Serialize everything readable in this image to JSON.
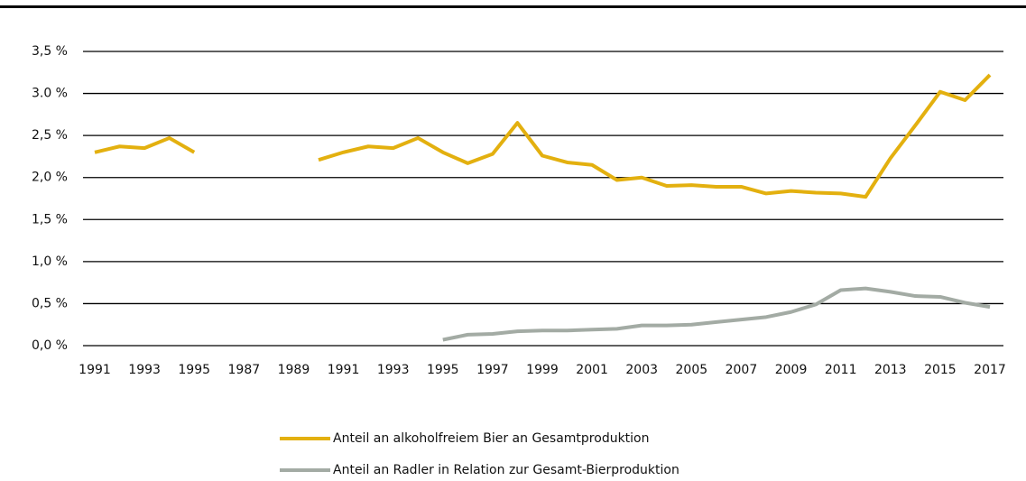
{
  "chart_data": {
    "type": "line",
    "categories": [
      "1991",
      null,
      "1993",
      null,
      "1995",
      null,
      "1987",
      null,
      "1989",
      null,
      "1991",
      null,
      "1993",
      null,
      "1995",
      null,
      "1997",
      null,
      "1999",
      null,
      "2001",
      null,
      "2003",
      null,
      "2005",
      null,
      "2007",
      null,
      "2009",
      null,
      "2011",
      null,
      "2013",
      null,
      "2015",
      null,
      "2017"
    ],
    "series": [
      {
        "name": "Anteil an alkoholfreiem Bier an Gesamtproduktion",
        "color": "#e3b00f",
        "values": [
          2.3,
          2.37,
          2.35,
          2.47,
          2.3,
          null,
          null,
          null,
          null,
          2.21,
          2.3,
          2.37,
          2.35,
          2.47,
          2.3,
          2.17,
          2.28,
          2.65,
          2.26,
          2.18,
          2.15,
          1.97,
          2.0,
          1.9,
          1.91,
          1.89,
          1.89,
          1.81,
          1.84,
          1.82,
          1.81,
          1.77,
          2.23,
          2.62,
          3.02,
          2.92,
          3.22
        ]
      },
      {
        "name": "Anteil an Radler in Relation zur Gesamt-Bierproduktion",
        "color": "#a3aba4",
        "values": [
          null,
          null,
          null,
          null,
          null,
          null,
          null,
          null,
          null,
          null,
          null,
          null,
          null,
          null,
          0.07,
          0.13,
          0.14,
          0.17,
          0.18,
          0.18,
          0.19,
          0.2,
          0.24,
          0.24,
          0.25,
          0.28,
          0.31,
          0.34,
          0.4,
          0.49,
          0.66,
          0.68,
          0.64,
          0.59,
          0.58,
          0.51,
          0.46
        ]
      }
    ],
    "ylim": [
      0,
      3.5
    ],
    "yticks": [
      {
        "value": 0,
        "label": "0,0 %"
      },
      {
        "value": 0.5,
        "label": "0,5 %"
      },
      {
        "value": 1,
        "label": "1,0 %"
      },
      {
        "value": 1.5,
        "label": "1,5 %"
      },
      {
        "value": 2,
        "label": "2,0 %"
      },
      {
        "value": 2.5,
        "label": "2,5 %"
      },
      {
        "value": 3,
        "label": "3.0 %"
      },
      {
        "value": 3.5,
        "label": "3,5 %"
      }
    ],
    "grid": true,
    "legend": "bottom"
  }
}
